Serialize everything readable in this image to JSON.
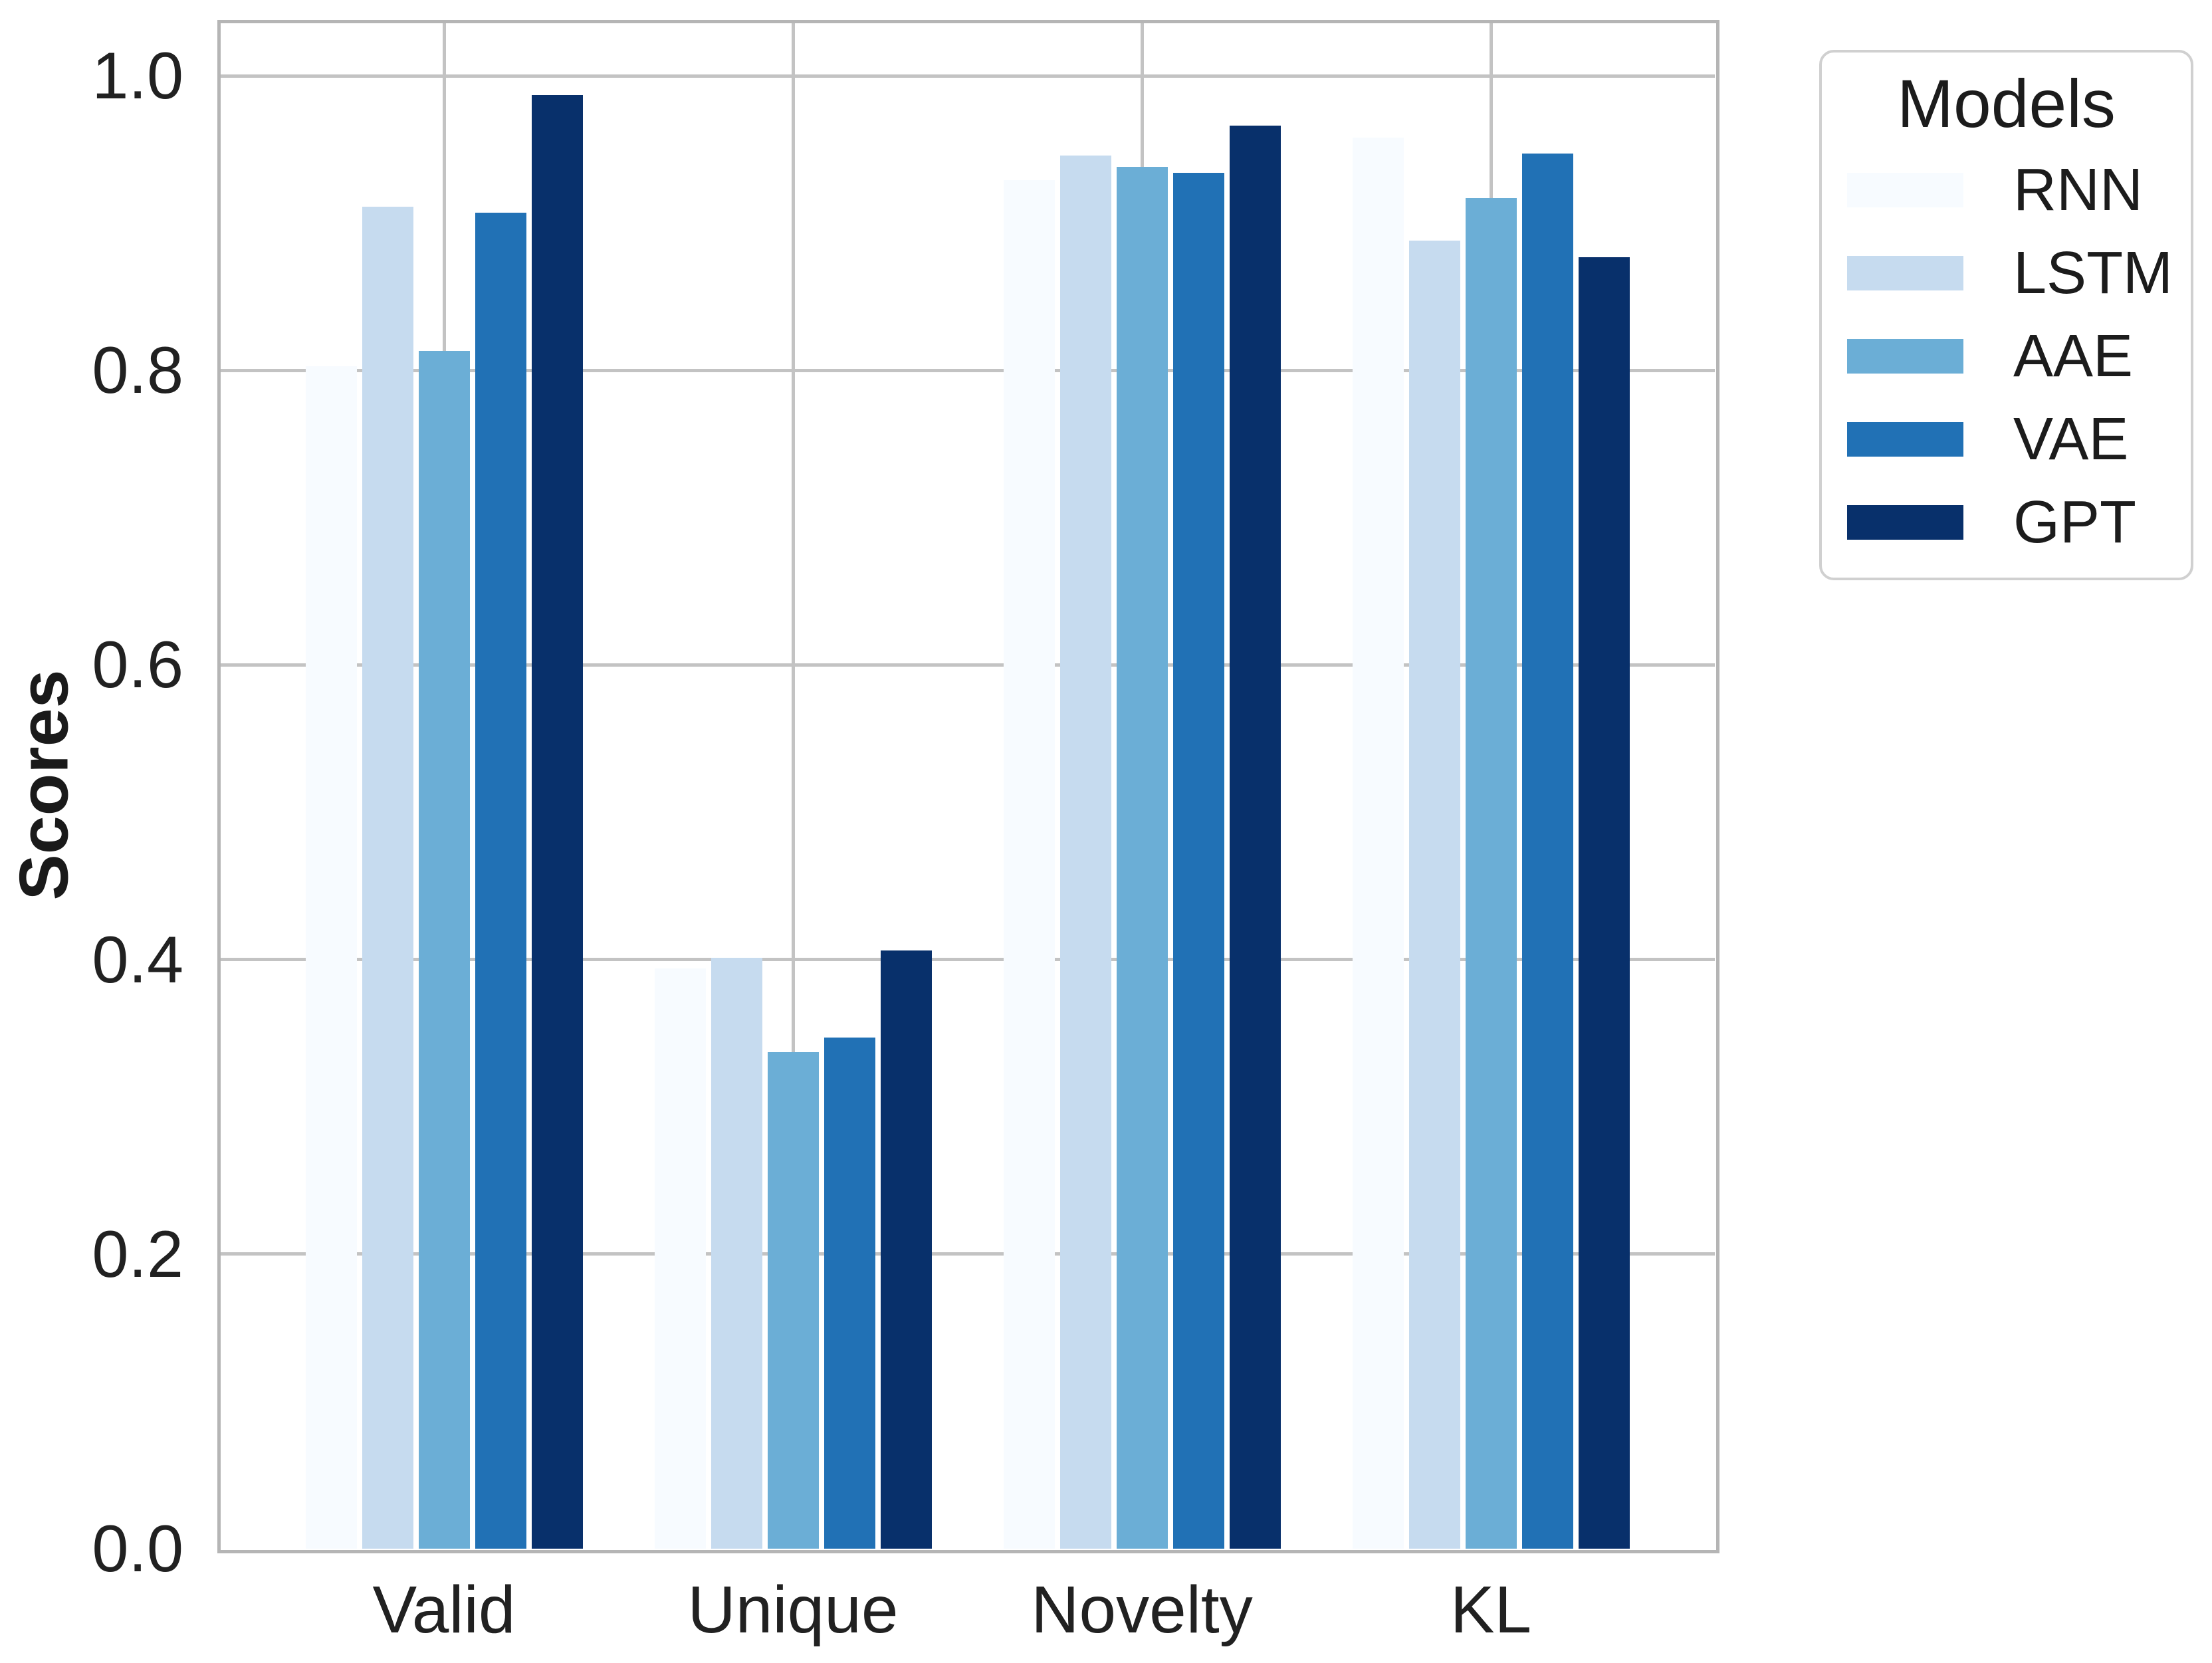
{
  "chart_data": {
    "type": "bar",
    "title": "",
    "xlabel": "",
    "ylabel": "Scores",
    "categories": [
      "Valid",
      "Unique",
      "Novelty",
      "KL"
    ],
    "series": [
      {
        "name": "RNN",
        "color": "#f7fbff",
        "values": [
          0.803,
          0.394,
          0.929,
          0.958
        ]
      },
      {
        "name": "LSTM",
        "color": "#c6dbef",
        "values": [
          0.911,
          0.401,
          0.946,
          0.888
        ]
      },
      {
        "name": "AAE",
        "color": "#6baed6",
        "values": [
          0.813,
          0.337,
          0.938,
          0.917
        ]
      },
      {
        "name": "VAE",
        "color": "#2171b5",
        "values": [
          0.907,
          0.347,
          0.934,
          0.947
        ]
      },
      {
        "name": "GPT",
        "color": "#08306b",
        "values": [
          0.987,
          0.406,
          0.966,
          0.877
        ]
      }
    ],
    "ylim": [
      0.0,
      1.037
    ],
    "yticks": [
      0.0,
      0.2,
      0.4,
      0.6,
      0.8,
      1.0
    ],
    "ytick_labels": [
      "0.0",
      "0.2",
      "0.4",
      "0.6",
      "0.8",
      "1.0"
    ],
    "grid": true,
    "legend": {
      "title": "Models",
      "position": "upper-right-outside"
    },
    "style": {
      "grid_color": "#c3c3c3",
      "spine_color": "#b5b5b5",
      "text_color": "#212121",
      "background": "#ffffff"
    }
  }
}
